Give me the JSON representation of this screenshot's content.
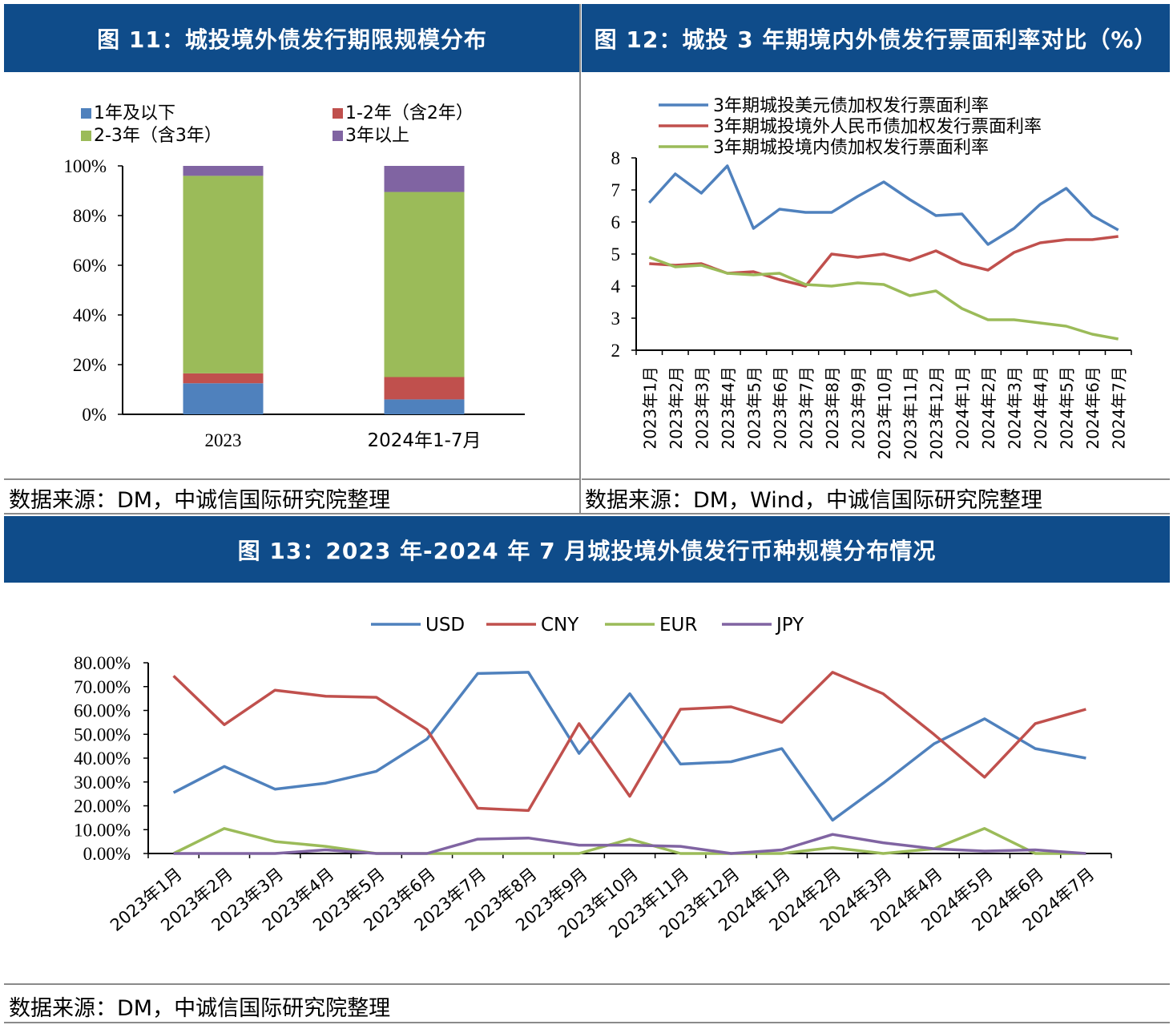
{
  "chart_data": [
    {
      "type": "bar",
      "stacked": true,
      "title": "图 11：城投境外债发行期限规模分布",
      "source": "数据来源：DM，中诚信国际研究院整理",
      "categories": [
        "2023",
        "2024年1-7月"
      ],
      "ylim": [
        0,
        100
      ],
      "yticks": [
        "0%",
        "20%",
        "40%",
        "60%",
        "80%",
        "100%"
      ],
      "legend_position": "top",
      "series": [
        {
          "name": "1年及以下",
          "color": "#4f81bd",
          "values": [
            12.5,
            6
          ]
        },
        {
          "name": "1-2年（含2年）",
          "color": "#c0504d",
          "values": [
            4,
            9
          ]
        },
        {
          "name": "2-3年（含3年）",
          "color": "#9bbb59",
          "values": [
            79.5,
            74.5
          ]
        },
        {
          "name": "3年以上",
          "color": "#8064a2",
          "values": [
            4,
            10.5
          ]
        }
      ]
    },
    {
      "type": "line",
      "title": "图 12：城投 3 年期境内外债发行票面利率对比（%）",
      "source": "数据来源：DM，Wind，中诚信国际研究院整理",
      "categories": [
        "2023年1月",
        "2023年2月",
        "2023年3月",
        "2023年4月",
        "2023年5月",
        "2023年6月",
        "2023年7月",
        "2023年8月",
        "2023年9月",
        "2023年10月",
        "2023年11月",
        "2023年12月",
        "2024年1月",
        "2024年2月",
        "2024年3月",
        "2024年4月",
        "2024年5月",
        "2024年6月",
        "2024年7月"
      ],
      "ylim": [
        2,
        8
      ],
      "yticks": [
        "2",
        "3",
        "4",
        "5",
        "6",
        "7",
        "8"
      ],
      "legend_position": "top",
      "series": [
        {
          "name": "3年期城投美元债加权发行票面利率",
          "color": "#4f81bd",
          "values": [
            6.6,
            7.5,
            6.9,
            7.75,
            5.8,
            6.4,
            6.3,
            6.3,
            6.8,
            7.25,
            6.7,
            6.2,
            6.25,
            5.3,
            5.8,
            6.55,
            7.05,
            6.2,
            5.75
          ]
        },
        {
          "name": "3年期城投境外人民币债加权发行票面利率",
          "color": "#c0504d",
          "values": [
            4.7,
            4.65,
            4.7,
            4.4,
            4.45,
            4.2,
            4.0,
            5.0,
            4.9,
            5.0,
            4.8,
            5.1,
            4.7,
            4.5,
            5.05,
            5.35,
            5.45,
            5.45,
            5.55
          ]
        },
        {
          "name": "3年期城投境内债加权发行票面利率",
          "color": "#9bbb59",
          "values": [
            4.9,
            4.6,
            4.65,
            4.4,
            4.35,
            4.4,
            4.05,
            4.0,
            4.1,
            4.05,
            3.7,
            3.85,
            3.3,
            2.95,
            2.95,
            2.85,
            2.75,
            2.5,
            2.35
          ]
        }
      ]
    },
    {
      "type": "line",
      "title": "图 13：2023 年-2024 年 7 月城投境外债发行币种规模分布情况",
      "source": "数据来源：DM，中诚信国际研究院整理",
      "categories": [
        "2023年1月",
        "2023年2月",
        "2023年3月",
        "2023年4月",
        "2023年5月",
        "2023年6月",
        "2023年7月",
        "2023年8月",
        "2023年9月",
        "2023年10月",
        "2023年11月",
        "2023年12月",
        "2024年1月",
        "2024年2月",
        "2024年3月",
        "2024年4月",
        "2024年5月",
        "2024年6月",
        "2024年7月"
      ],
      "ylim": [
        0,
        80
      ],
      "yticks": [
        "0.00%",
        "10.00%",
        "20.00%",
        "30.00%",
        "40.00%",
        "50.00%",
        "60.00%",
        "70.00%",
        "80.00%"
      ],
      "legend_position": "top",
      "series": [
        {
          "name": "USD",
          "color": "#4f81bd",
          "values": [
            25.5,
            36.5,
            27,
            29.5,
            34.5,
            48,
            75.5,
            76,
            42,
            67,
            37.5,
            38.5,
            44,
            14,
            29.5,
            46,
            56.5,
            44,
            40
          ]
        },
        {
          "name": "CNY",
          "color": "#c0504d",
          "values": [
            74.5,
            54,
            68.5,
            66,
            65.5,
            52,
            19,
            18,
            54.5,
            24,
            60.5,
            61.5,
            55,
            76,
            67,
            50,
            32,
            54.5,
            60.5
          ]
        },
        {
          "name": "EUR",
          "color": "#9bbb59",
          "values": [
            0,
            10.5,
            5,
            3,
            0,
            0,
            0,
            0,
            0,
            6,
            0,
            0,
            0,
            2.5,
            0,
            2,
            10.5,
            0,
            0
          ]
        },
        {
          "name": "JPY",
          "color": "#8064a2",
          "values": [
            0,
            0,
            0,
            1.5,
            0,
            0,
            6,
            6.5,
            3.5,
            3.5,
            3,
            0,
            1.5,
            8,
            4.5,
            2,
            1,
            1.5,
            0
          ]
        }
      ]
    }
  ]
}
